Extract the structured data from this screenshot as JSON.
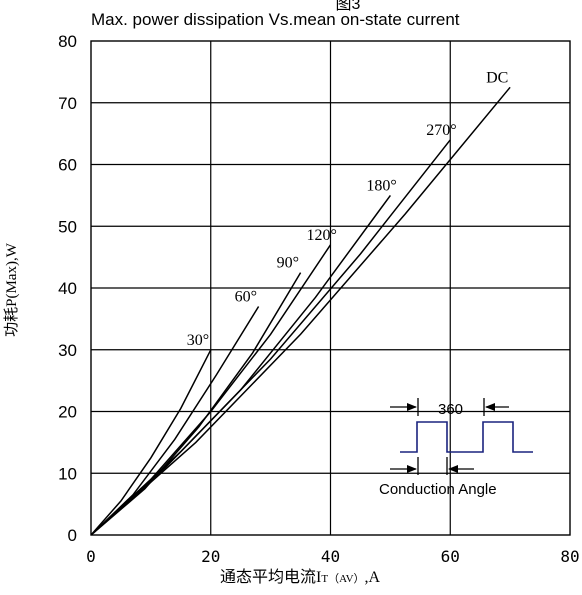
{
  "chart_data": {
    "type": "line",
    "title_fragment": "图3",
    "title": "Max. power dissipation Vs.mean on-state current",
    "xlabel": "通态平均电流IT(AV),A",
    "xlabel_main": "通态平均电流I",
    "xlabel_sub": "T（AV）",
    "xlabel_unit": ",A",
    "ylabel": "功耗P(Max),W",
    "xlim": [
      0,
      80
    ],
    "ylim": [
      0,
      80
    ],
    "x_ticks": [
      0,
      20,
      40,
      60,
      80
    ],
    "y_ticks": [
      0,
      10,
      20,
      30,
      40,
      50,
      60,
      70,
      80
    ],
    "grid": true,
    "series": [
      {
        "name": "30°",
        "points": [
          [
            0,
            0
          ],
          [
            5,
            5.5
          ],
          [
            10,
            12.5
          ],
          [
            15,
            20.5
          ],
          [
            20,
            30
          ]
        ]
      },
      {
        "name": "60°",
        "points": [
          [
            0,
            0
          ],
          [
            7,
            6.5
          ],
          [
            14,
            15.5
          ],
          [
            21,
            26
          ],
          [
            28,
            37
          ]
        ]
      },
      {
        "name": "90°",
        "points": [
          [
            0,
            0
          ],
          [
            9,
            7.5
          ],
          [
            18,
            17.5
          ],
          [
            27,
            29.5
          ],
          [
            35,
            42.5
          ]
        ]
      },
      {
        "name": "120°",
        "points": [
          [
            0,
            0
          ],
          [
            10,
            9
          ],
          [
            20,
            20
          ],
          [
            30,
            32.5
          ],
          [
            40,
            47
          ]
        ]
      },
      {
        "name": "180°",
        "points": [
          [
            0,
            0
          ],
          [
            12.5,
            11
          ],
          [
            25,
            23.5
          ],
          [
            37.5,
            38.5
          ],
          [
            50,
            55
          ]
        ]
      },
      {
        "name": "270°",
        "points": [
          [
            0,
            0
          ],
          [
            15,
            13.5
          ],
          [
            30,
            28.5
          ],
          [
            45,
            45.5
          ],
          [
            60,
            64
          ]
        ]
      },
      {
        "name": "DC",
        "points": [
          [
            0,
            0
          ],
          [
            17.5,
            15
          ],
          [
            35,
            32.5
          ],
          [
            52.5,
            52
          ],
          [
            70,
            72.5
          ]
        ]
      }
    ],
    "inset": {
      "period_label": "360",
      "conduction_label": "Conduction Angle"
    }
  }
}
